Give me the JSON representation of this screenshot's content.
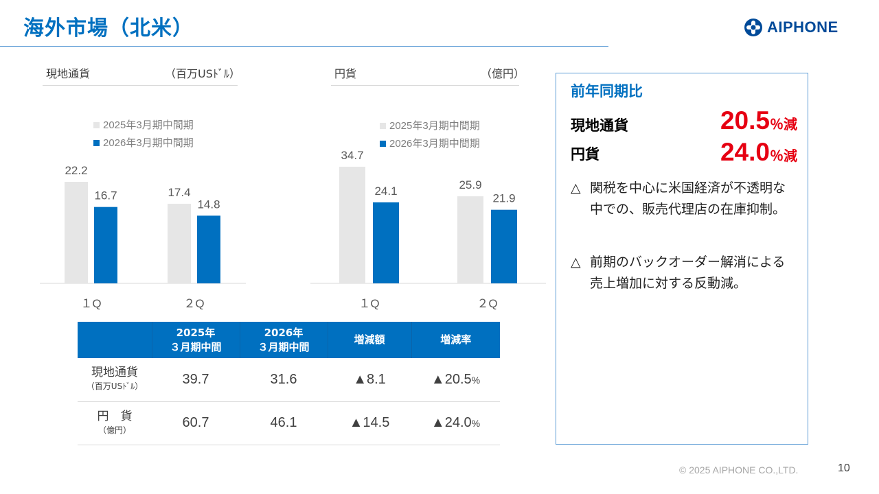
{
  "header": {
    "title": "海外市場（北米）",
    "logo_text": "AIPHONE"
  },
  "left_chart": {
    "label": "現地通貨",
    "unit": "（百万USﾄﾞﾙ）"
  },
  "right_chart": {
    "label": "円貨",
    "unit": "（億円）"
  },
  "chart_data": [
    {
      "type": "bar",
      "title": "現地通貨",
      "unit": "（百万USﾄﾞﾙ）",
      "categories": [
        "1Q",
        "2Q"
      ],
      "category_labels": [
        "１Q",
        "２Q"
      ],
      "series": [
        {
          "name": "2025年3月期中間期",
          "values": [
            22.2,
            17.4
          ],
          "color": "#e6e6e6"
        },
        {
          "name": "2026年3月期中間期",
          "values": [
            16.7,
            14.8
          ],
          "color": "#0070c0"
        }
      ],
      "data_labels": [
        [
          "22.2",
          "17.4"
        ],
        [
          "16.7",
          "14.8"
        ]
      ],
      "ylim": [
        0,
        22.2
      ],
      "grid": false,
      "legend": "top"
    },
    {
      "type": "bar",
      "title": "円貨",
      "unit": "（億円）",
      "categories": [
        "1Q",
        "2Q"
      ],
      "category_labels": [
        "１Q",
        "２Q"
      ],
      "series": [
        {
          "name": "2025年3月期中間期",
          "values": [
            34.7,
            25.9
          ],
          "color": "#e6e6e6"
        },
        {
          "name": "2026年3月期中間期",
          "values": [
            24.1,
            21.9
          ],
          "color": "#0070c0"
        }
      ],
      "data_labels": [
        [
          "34.7",
          "25.9"
        ],
        [
          "24.1",
          "21.9"
        ]
      ],
      "ylim": [
        0,
        34.7
      ],
      "grid": false,
      "legend": "top"
    }
  ],
  "table": {
    "headers": {
      "col1_line1": "2025年",
      "col1_line2": "３月期中間",
      "col2_line1": "2026年",
      "col2_line2": "３月期中間",
      "col3": "増減額",
      "col4": "増減率"
    },
    "rows": [
      {
        "label": "現地通貨",
        "sublabel": "（百万USﾄﾞﾙ）",
        "v2025": "39.7",
        "v2026": "31.6",
        "diff": "▲8.1",
        "rate": "▲20.5",
        "rate_unit": "%"
      },
      {
        "label": "円　貨",
        "sublabel": "（億円）",
        "v2025": "60.7",
        "v2026": "46.1",
        "diff": "▲14.5",
        "rate": "▲24.0",
        "rate_unit": "%"
      }
    ]
  },
  "info_box": {
    "heading": "前年同期比",
    "local_label": "現地通貨",
    "local_value": "20.5",
    "local_unit": "％減",
    "yen_label": "円貨",
    "yen_value": "24.0",
    "yen_unit": "％減",
    "note1_marker": "△",
    "note1": "関税を中心に米国経済が不透明な中での、販売代理店の在庫抑制。",
    "note2_marker": "△",
    "note2": "前期のバックオーダー解消による売上増加に対する反動減。"
  },
  "footer": {
    "copyright": "© 2025 AIPHONE CO.,LTD.",
    "page_number": "10"
  },
  "colors": {
    "brand_blue": "#0070c0",
    "logo_blue": "#004a99",
    "accent_red": "#e60012",
    "bar_grey": "#e6e6e6"
  }
}
